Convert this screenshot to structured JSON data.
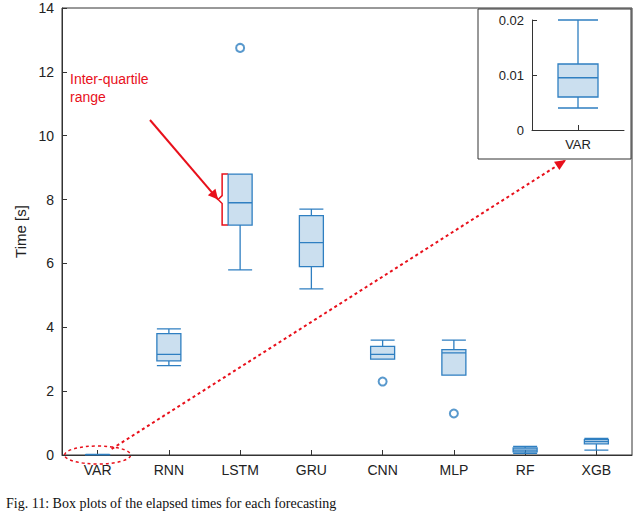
{
  "chart_data": {
    "type": "boxplot",
    "y_label": "Time [s]",
    "color": "#2f7fc1",
    "categories": [
      "VAR",
      "RNN",
      "LSTM",
      "GRU",
      "CNN",
      "MLP",
      "RF",
      "XGB"
    ],
    "boxes": [
      {
        "min": 0.004,
        "q1": 0.006,
        "median": 0.0095,
        "q3": 0.012,
        "max": 0.02,
        "outliers": []
      },
      {
        "min": 2.8,
        "q1": 2.95,
        "median": 3.15,
        "q3": 3.8,
        "max": 3.95,
        "outliers": []
      },
      {
        "min": 5.8,
        "q1": 7.2,
        "median": 7.9,
        "q3": 8.8,
        "max": 8.8,
        "outliers": [
          12.75
        ]
      },
      {
        "min": 5.2,
        "q1": 5.9,
        "median": 6.65,
        "q3": 7.5,
        "max": 7.7,
        "outliers": []
      },
      {
        "min": 3.0,
        "q1": 3.0,
        "median": 3.15,
        "q3": 3.4,
        "max": 3.6,
        "outliers": [
          2.3
        ]
      },
      {
        "min": 2.5,
        "q1": 2.5,
        "median": 3.2,
        "q3": 3.3,
        "max": 3.6,
        "outliers": [
          1.3
        ]
      },
      {
        "min": 0.05,
        "q1": 0.1,
        "median": 0.15,
        "q3": 0.22,
        "max": 0.27,
        "outliers": []
      },
      {
        "min": 0.15,
        "q1": 0.35,
        "median": 0.42,
        "q3": 0.48,
        "max": 0.52,
        "outliers": []
      }
    ],
    "ylim": [
      0,
      14
    ],
    "yticks": [
      0,
      2,
      4,
      6,
      8,
      10,
      12,
      14
    ],
    "annotation": "Inter-quartile range",
    "inset": {
      "categories": [
        "VAR"
      ],
      "boxes": [
        {
          "min": 0.004,
          "q1": 0.006,
          "median": 0.0095,
          "q3": 0.012,
          "max": 0.02,
          "outliers": []
        }
      ],
      "ylim": [
        0,
        0.02
      ],
      "yticks": [
        0,
        0.01,
        0.02
      ]
    },
    "caption": "Fig. 11: Box plots of the elapsed times for each forecasting"
  }
}
